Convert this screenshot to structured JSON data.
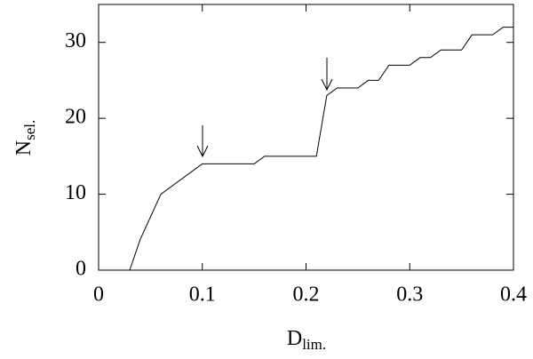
{
  "chart_data": {
    "type": "line",
    "xlabel": "D",
    "xlabel_subscript": "lim.",
    "ylabel": "N",
    "ylabel_subscript": "sel.",
    "x": [
      0.03,
      0.04,
      0.06,
      0.1,
      0.15,
      0.16,
      0.21,
      0.22,
      0.23,
      0.25,
      0.26,
      0.27,
      0.28,
      0.3,
      0.31,
      0.32,
      0.33,
      0.35,
      0.36,
      0.38,
      0.39,
      0.4
    ],
    "values": [
      0,
      4,
      10,
      14,
      14,
      15,
      15,
      23,
      24,
      24,
      25,
      25,
      27,
      27,
      28,
      28,
      29,
      29,
      31,
      31,
      32,
      32
    ],
    "color": "#000000",
    "xlim": [
      0,
      0.4
    ],
    "xticks": [
      0,
      0.1,
      0.2,
      0.3,
      0.4
    ],
    "ylim": [
      0,
      35
    ],
    "yticks": [
      0,
      10,
      20,
      30
    ],
    "grid": false
  }
}
